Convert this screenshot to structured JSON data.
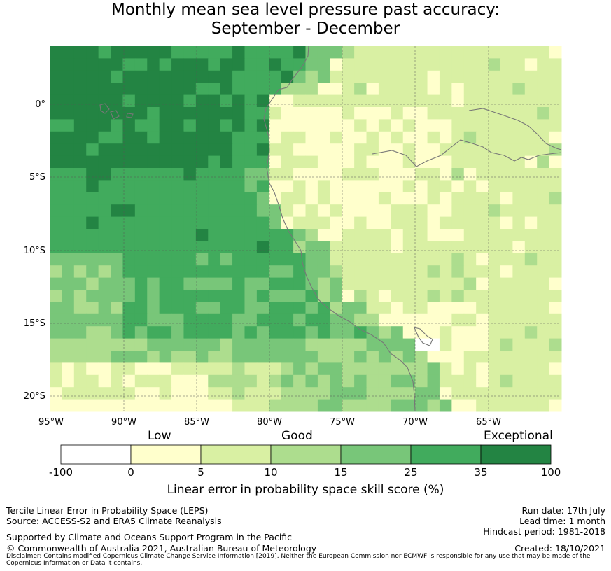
{
  "title_line1": "Monthly mean sea level pressure past accuracy:",
  "title_line2": "September - December",
  "map": {
    "lat_labels": [
      "0°",
      "5°S",
      "10°S",
      "15°S",
      "20°S"
    ],
    "lon_labels": [
      "95°W",
      "90°W",
      "85°W",
      "80°W",
      "75°W",
      "70°W",
      "65°W"
    ],
    "gridlines": true,
    "lon_range": [
      -95,
      -60
    ],
    "lat_range": [
      -21,
      4
    ]
  },
  "colorbar": {
    "categories": [
      "Low",
      "Good",
      "Exceptional"
    ],
    "ticks": [
      "-100",
      "0",
      "5",
      "10",
      "15",
      "25",
      "35",
      "100"
    ],
    "colors": [
      "#ffffff",
      "#ffffcc",
      "#d9f0a3",
      "#addd8e",
      "#78c679",
      "#41ab5d",
      "#238443"
    ],
    "title": "Linear error in probability space skill score (%)"
  },
  "footer": {
    "line1": "Tercile Linear Error in Probability Space (LEPS)",
    "line2": "Source: ACCESS-S2 and ERA5 Climate Reanalysis",
    "run_date": "Run date: 17th July",
    "lead_time": "Lead time: 1 month",
    "hindcast": "Hindcast period: 1981-2018",
    "support": "Supported by Climate and Oceans Support Program in the Pacific",
    "copyright": "© Commonwealth of Australia 2021, Australian Bureau of Meteorology",
    "created": "Created: 18/10/2021",
    "disclaimer": "Disclaimer: Contains modified Copernicus Climate Change Service Information [2019]. Neither the European Commission nor ECMWF is responsible for any use that may be made of the Copernicus Information or Data it contains."
  }
}
